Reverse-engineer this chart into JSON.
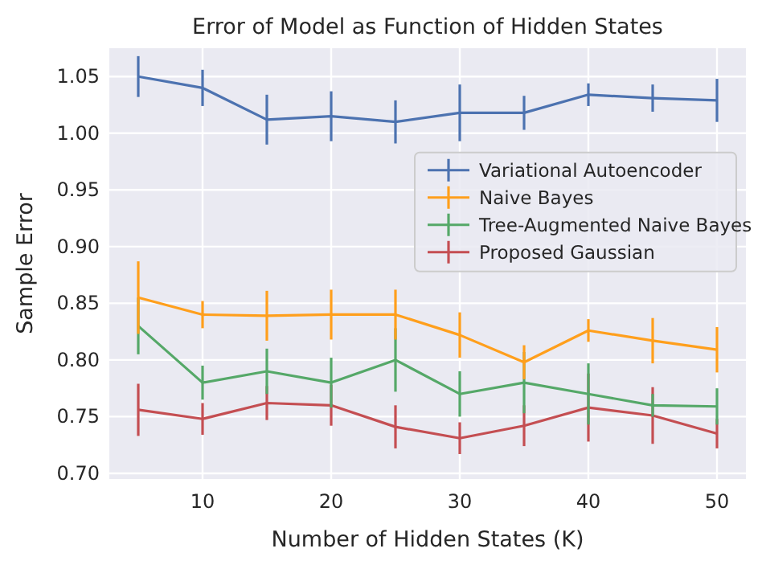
{
  "chart_data": {
    "type": "line",
    "title": "Error of Model as Function of Hidden States",
    "xlabel": "Number of Hidden States (K)",
    "ylabel": "Sample Error",
    "x": [
      5,
      10,
      15,
      20,
      25,
      30,
      35,
      40,
      45,
      50
    ],
    "series": [
      {
        "name": "Variational Autoencoder",
        "color": "#4c72b0",
        "values": [
          1.05,
          1.04,
          1.012,
          1.015,
          1.01,
          1.018,
          1.018,
          1.034,
          1.031,
          1.029
        ],
        "errors": [
          0.018,
          0.016,
          0.022,
          0.022,
          0.019,
          0.025,
          0.015,
          0.01,
          0.012,
          0.019
        ]
      },
      {
        "name": "Naive Bayes",
        "color": "#ff9f1c",
        "values": [
          0.855,
          0.84,
          0.839,
          0.84,
          0.84,
          0.822,
          0.798,
          0.826,
          0.817,
          0.809
        ],
        "errors": [
          0.032,
          0.012,
          0.022,
          0.022,
          0.022,
          0.02,
          0.015,
          0.01,
          0.02,
          0.02
        ]
      },
      {
        "name": "Tree-Augmented Naive Bayes",
        "color": "#55a868",
        "values": [
          0.83,
          0.78,
          0.79,
          0.78,
          0.8,
          0.77,
          0.78,
          0.77,
          0.76,
          0.759
        ],
        "errors": [
          0.025,
          0.015,
          0.02,
          0.022,
          0.028,
          0.02,
          0.027,
          0.027,
          0.01,
          0.016
        ]
      },
      {
        "name": "Proposed Gaussian",
        "color": "#c44e52",
        "values": [
          0.756,
          0.748,
          0.762,
          0.76,
          0.741,
          0.731,
          0.742,
          0.758,
          0.751,
          0.735
        ],
        "errors": [
          0.023,
          0.014,
          0.015,
          0.018,
          0.019,
          0.014,
          0.018,
          0.03,
          0.025,
          0.013
        ]
      }
    ],
    "xlim": [
      2.75,
      52.25
    ],
    "xticks": [
      10,
      20,
      30,
      40,
      50
    ],
    "ylim": [
      0.695,
      1.075
    ],
    "yticks": [
      {
        "value": 0.7,
        "label": "0.70"
      },
      {
        "value": 0.75,
        "label": "0.75"
      },
      {
        "value": 0.8,
        "label": "0.80"
      },
      {
        "value": 0.85,
        "label": "0.85"
      },
      {
        "value": 0.9,
        "label": "0.90"
      },
      {
        "value": 0.95,
        "label": "0.95"
      },
      {
        "value": 1.0,
        "label": "1.00"
      },
      {
        "value": 1.05,
        "label": "1.05"
      }
    ],
    "grid": true,
    "legend": "right",
    "marker": "none",
    "line_style": "solid"
  }
}
